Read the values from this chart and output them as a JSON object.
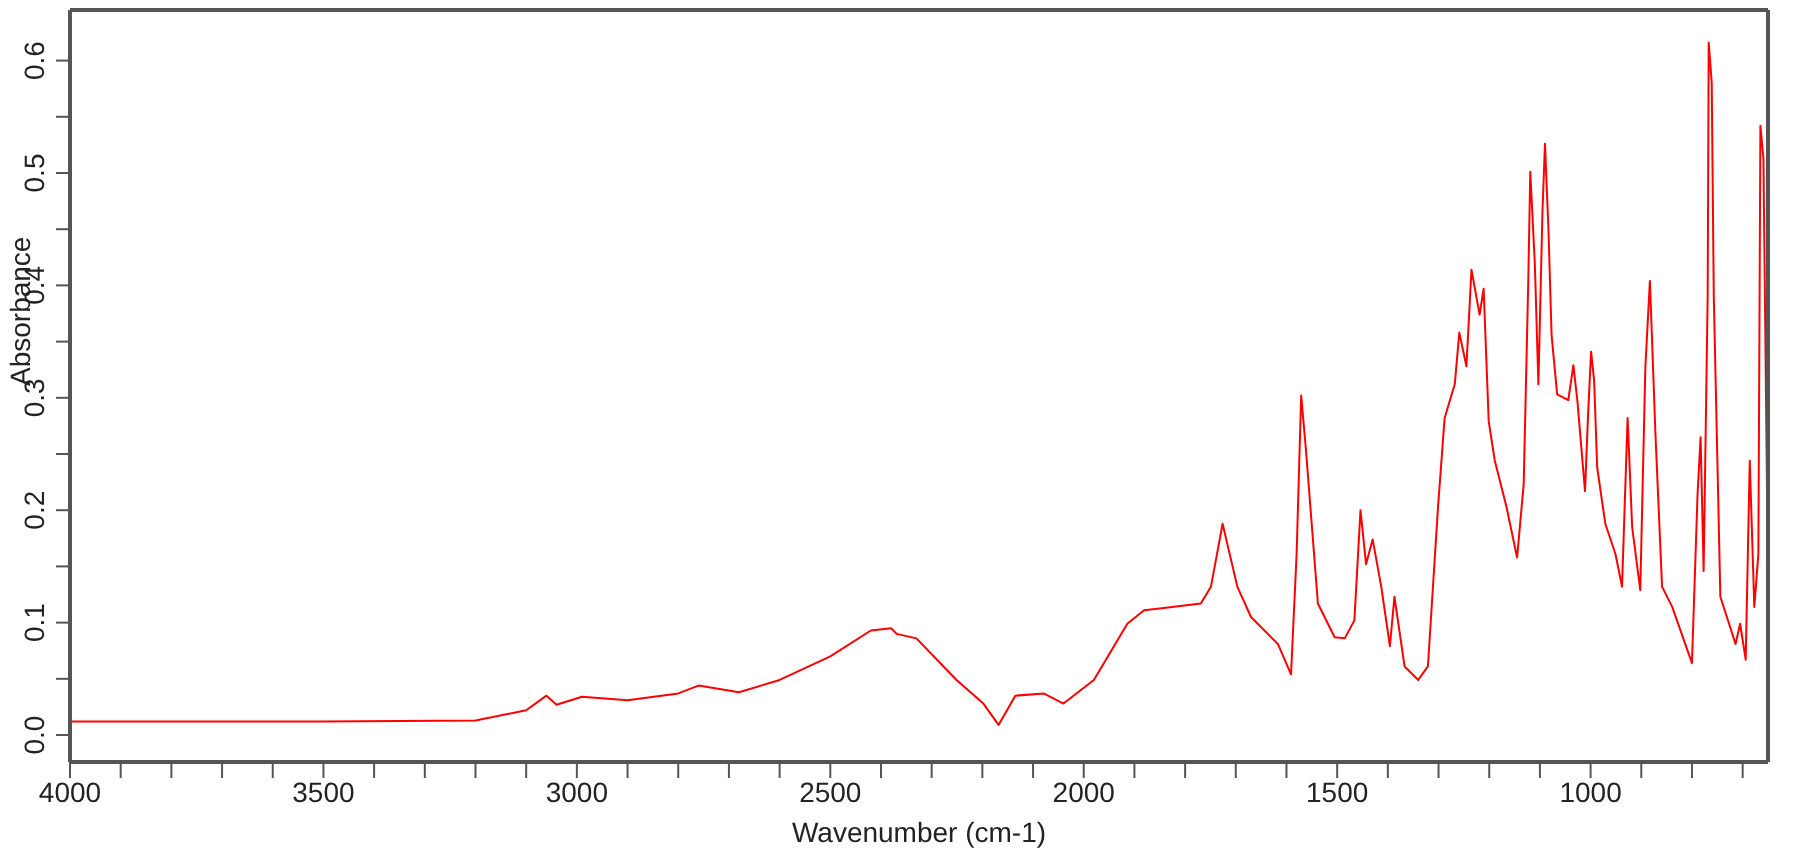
{
  "chart_data": {
    "type": "line",
    "xlabel": "Wavenumber (cm-1)",
    "ylabel": "Absorbance",
    "xlim": [
      4000,
      650
    ],
    "ylim": [
      -0.024,
      0.645
    ],
    "xticks": [
      4000,
      {
        "value": 3900,
        "label": null
      },
      {
        "value": 3800,
        "label": null
      },
      {
        "value": 3700,
        "label": null
      },
      {
        "value": 3600,
        "label": null
      },
      3500,
      {
        "value": 3400,
        "label": null
      },
      {
        "value": 3300,
        "label": null
      },
      {
        "value": 3200,
        "label": null
      },
      {
        "value": 3100,
        "label": null
      },
      3000,
      {
        "value": 2900,
        "label": null
      },
      {
        "value": 2800,
        "label": null
      },
      {
        "value": 2700,
        "label": null
      },
      {
        "value": 2600,
        "label": null
      },
      2500,
      {
        "value": 2400,
        "label": null
      },
      {
        "value": 2300,
        "label": null
      },
      {
        "value": 2200,
        "label": null
      },
      {
        "value": 2100,
        "label": null
      },
      2000,
      {
        "value": 1900,
        "label": null
      },
      {
        "value": 1800,
        "label": null
      },
      {
        "value": 1700,
        "label": null
      },
      {
        "value": 1600,
        "label": null
      },
      1500,
      {
        "value": 1400,
        "label": null
      },
      {
        "value": 1300,
        "label": null
      },
      {
        "value": 1200,
        "label": null
      },
      {
        "value": 1100,
        "label": null
      },
      1000,
      {
        "value": 900,
        "label": null
      },
      {
        "value": 800,
        "label": null
      },
      {
        "value": 700,
        "label": null
      }
    ],
    "yticks": [
      {
        "value": 0,
        "label": "0.0"
      },
      {
        "value": 0.05,
        "label": null
      },
      0.1,
      {
        "value": 0.15,
        "label": null
      },
      0.2,
      {
        "value": 0.25,
        "label": null
      },
      0.3,
      {
        "value": 0.35,
        "label": null
      },
      0.4,
      {
        "value": 0.45,
        "label": null
      },
      0.5,
      {
        "value": 0.55,
        "label": null
      },
      0.6
    ],
    "x": [
      4000,
      3500,
      3200,
      3100,
      3060,
      3040,
      2990,
      2900,
      2800,
      2760,
      2680,
      2600,
      2500,
      2420,
      2380,
      2369,
      2330,
      2251,
      2198,
      2168,
      2135,
      2079,
      2040,
      1980,
      1914,
      1881,
      1842,
      1769,
      1749,
      1726,
      1697,
      1670,
      1617,
      1591,
      1580,
      1571,
      1562,
      1538,
      1505,
      1485,
      1466,
      1454,
      1443,
      1430,
      1413,
      1396,
      1387,
      1367,
      1340,
      1321,
      1301,
      1288,
      1268,
      1259,
      1245,
      1235,
      1219,
      1211,
      1201,
      1189,
      1166,
      1145,
      1132,
      1123,
      1119,
      1110,
      1103,
      1095,
      1090,
      1083,
      1077,
      1066,
      1044,
      1034,
      1026,
      1011,
      1005,
      999,
      993,
      987,
      971,
      951,
      938,
      927,
      918,
      902,
      892,
      883,
      872,
      859,
      839,
      800,
      789,
      783,
      777,
      769,
      767,
      761,
      757,
      744,
      714,
      705,
      694,
      686,
      677,
      669,
      665,
      659,
      652,
      650
    ],
    "series": [
      {
        "color": "#ff0000",
        "values": [
          0.012,
          0.012,
          0.013,
          0.022,
          0.035,
          0.027,
          0.034,
          0.031,
          0.037,
          0.044,
          0.038,
          0.049,
          0.07,
          0.093,
          0.095,
          0.09,
          0.086,
          0.049,
          0.028,
          0.009,
          0.035,
          0.037,
          0.028,
          0.049,
          0.099,
          0.111,
          0.113,
          0.117,
          0.132,
          0.188,
          0.132,
          0.105,
          0.081,
          0.054,
          0.161,
          0.302,
          0.256,
          0.117,
          0.087,
          0.086,
          0.102,
          0.2,
          0.152,
          0.174,
          0.132,
          0.079,
          0.123,
          0.061,
          0.049,
          0.061,
          0.203,
          0.282,
          0.312,
          0.358,
          0.328,
          0.414,
          0.374,
          0.397,
          0.279,
          0.244,
          0.203,
          0.158,
          0.223,
          0.403,
          0.501,
          0.419,
          0.312,
          0.465,
          0.526,
          0.448,
          0.356,
          0.303,
          0.298,
          0.329,
          0.297,
          0.217,
          0.285,
          0.341,
          0.315,
          0.238,
          0.188,
          0.161,
          0.132,
          0.282,
          0.185,
          0.129,
          0.327,
          0.404,
          0.267,
          0.132,
          0.114,
          0.064,
          0.214,
          0.265,
          0.146,
          0.391,
          0.616,
          0.58,
          0.391,
          0.123,
          0.081,
          0.099,
          0.067,
          0.244,
          0.114,
          0.161,
          0.542,
          0.513,
          0.22,
          0.3
        ]
      }
    ]
  }
}
